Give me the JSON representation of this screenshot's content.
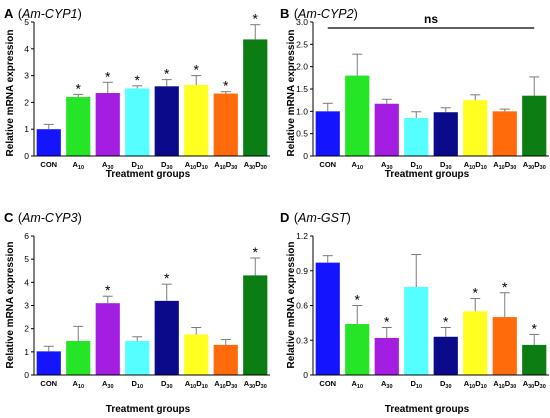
{
  "panels": [
    {
      "letter": "A",
      "gene": "Am-CYP1",
      "ylabel": "Relative mRNA expression",
      "xlabel": "Treatment groups",
      "yticks": [
        "0",
        "1",
        "2",
        "3",
        "4",
        "5"
      ]
    },
    {
      "letter": "B",
      "gene": "Am-CYP2",
      "ylabel": "Relative mRNA expression",
      "xlabel": "Treatment groups",
      "yticks": [
        "0",
        "0.5",
        "1.0",
        "1.5",
        "2.0",
        "2.5",
        "3.0"
      ],
      "annotation": "ns"
    },
    {
      "letter": "C",
      "gene": "Am-CYP3",
      "ylabel": "Relative mRNA expression",
      "xlabel": "Treatment groups",
      "yticks": [
        "0",
        "1",
        "2",
        "3",
        "4",
        "5",
        "6"
      ]
    },
    {
      "letter": "D",
      "gene": "Am-GST",
      "ylabel": "Relative mRNA expression",
      "xlabel": "Treatment groups",
      "yticks": [
        "0",
        "0.3",
        "0.6",
        "0.9",
        "1.2"
      ]
    }
  ],
  "categories": [
    {
      "main": "CON",
      "sub1": "",
      "main2": "",
      "sub2": ""
    },
    {
      "main": "A",
      "sub1": "10",
      "main2": "",
      "sub2": ""
    },
    {
      "main": "A",
      "sub1": "30",
      "main2": "",
      "sub2": ""
    },
    {
      "main": "D",
      "sub1": "10",
      "main2": "",
      "sub2": ""
    },
    {
      "main": "D",
      "sub1": "30",
      "main2": "",
      "sub2": ""
    },
    {
      "main": "A",
      "sub1": "10",
      "main2": "D",
      "sub2": "10"
    },
    {
      "main": "A",
      "sub1": "10",
      "main2": "D",
      "sub2": "30"
    },
    {
      "main": "A",
      "sub1": "30",
      "main2": "D",
      "sub2": "30"
    }
  ],
  "bar_colors": [
    "#1414ff",
    "#26e526",
    "#a31ee0",
    "#56ffff",
    "#0a0a8a",
    "#ffff22",
    "#ff6a0a",
    "#0b7d12"
  ],
  "chart_data": [
    {
      "type": "bar",
      "title": "Am-CYP1",
      "xlabel": "Treatment groups",
      "ylabel": "Relative mRNA expression",
      "categories": [
        "CON",
        "A10",
        "A30",
        "D10",
        "D30",
        "A10D10",
        "A10D30",
        "A30D30"
      ],
      "values": [
        1.0,
        2.2,
        2.35,
        2.52,
        2.6,
        2.65,
        2.33,
        4.35
      ],
      "errors": [
        0.18,
        0.1,
        0.4,
        0.1,
        0.25,
        0.35,
        0.07,
        0.55
      ],
      "significance": [
        "",
        "*",
        "*",
        "*",
        "*",
        "*",
        "*",
        "*"
      ],
      "ylim": [
        0,
        5
      ],
      "grid": false
    },
    {
      "type": "bar",
      "title": "Am-CYP2",
      "xlabel": "Treatment groups",
      "ylabel": "Relative mRNA expression",
      "categories": [
        "CON",
        "A10",
        "A30",
        "D10",
        "D30",
        "A10D10",
        "A10D30",
        "A30D30"
      ],
      "values": [
        1.0,
        1.8,
        1.17,
        0.85,
        0.98,
        1.25,
        1.0,
        1.35
      ],
      "errors": [
        0.18,
        0.48,
        0.1,
        0.14,
        0.1,
        0.12,
        0.05,
        0.42
      ],
      "significance": [
        "",
        "",
        "",
        "",
        "",
        "",
        "",
        ""
      ],
      "annotation": "ns",
      "ylim": [
        0,
        3.0
      ],
      "grid": false
    },
    {
      "type": "bar",
      "title": "Am-CYP3",
      "xlabel": "Treatment groups",
      "ylabel": "Relative mRNA expression",
      "categories": [
        "CON",
        "A10",
        "A30",
        "D10",
        "D30",
        "A10D10",
        "A10D30",
        "A30D30"
      ],
      "values": [
        1.02,
        1.47,
        3.1,
        1.47,
        3.2,
        1.75,
        1.3,
        4.3
      ],
      "errors": [
        0.22,
        0.63,
        0.3,
        0.18,
        0.72,
        0.3,
        0.23,
        0.75
      ],
      "significance": [
        "",
        "",
        "*",
        "",
        "*",
        "",
        "",
        "*"
      ],
      "ylim": [
        0,
        6
      ],
      "grid": false
    },
    {
      "type": "bar",
      "title": "Am-GST",
      "xlabel": "Treatment groups",
      "ylabel": "Relative mRNA expression",
      "categories": [
        "CON",
        "A10",
        "A30",
        "D10",
        "D30",
        "A10D10",
        "A10D30",
        "A30D30"
      ],
      "values": [
        0.97,
        0.44,
        0.32,
        0.76,
        0.33,
        0.55,
        0.5,
        0.26
      ],
      "errors": [
        0.06,
        0.16,
        0.09,
        0.28,
        0.08,
        0.11,
        0.21,
        0.09
      ],
      "significance": [
        "",
        "*",
        "*",
        "",
        "*",
        "*",
        "*",
        "*"
      ],
      "ylim": [
        0,
        1.2
      ],
      "grid": false
    }
  ]
}
